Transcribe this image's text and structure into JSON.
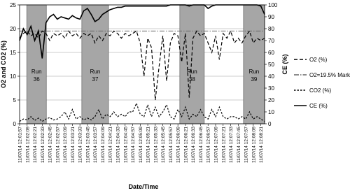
{
  "chart_data": {
    "type": "line",
    "x_label": "Date/Time",
    "y_label": "O2 and CO2 (%)",
    "y2_label": "CE (%)",
    "categories": [
      "11/07/14 12:01:57",
      null,
      "11/07/14 12:02:09",
      null,
      "11/07/14 12:02:21",
      null,
      "11/07/14 12:02:33",
      null,
      "11/07/14 12:02:45",
      null,
      "11/07/14 12:02:57",
      null,
      "11/07/14 12:03:09",
      null,
      "11/07/14 12:03:21",
      null,
      "11/07/14 12:03:33",
      null,
      "11/07/14 12:03:45",
      null,
      "11/07/14 12:03:57",
      null,
      "11/07/14 12:04:09",
      null,
      "11/07/14 12:04:21",
      null,
      "11/07/14 12:04:33",
      null,
      "11/07/14 12:04:45",
      null,
      "11/07/14 12:04:57",
      null,
      "11/07/14 12:05:09",
      null,
      "11/07/14 12:05:21",
      null,
      "11/07/14 12:05:33",
      null,
      "11/07/14 12:05:45",
      null,
      "11/07/14 12:05:57",
      null,
      "11/07/14 12:06:09",
      null,
      "11/07/14 12:06:21",
      null,
      "11/07/14 12:06:33",
      null,
      "11/07/14 12:06:45",
      null,
      "11/07/14 12:06:57",
      null,
      "11/07/14 12:07:09",
      null,
      "11/07/14 12:07:21",
      null,
      "11/07/14 12:07:33",
      null,
      "11/07/14 12:07:45",
      null,
      "11/07/14 12:07:57",
      null,
      "11/07/14 12:08:09",
      null,
      "11/07/14 12:08:21",
      null
    ],
    "series": [
      {
        "name": "O2 (%)",
        "color": "#000000",
        "dash": "5,3",
        "values": [
          18,
          19,
          19.5,
          18.5,
          19,
          18,
          19.5,
          19,
          17.5,
          19,
          18.5,
          19,
          18,
          19.5,
          18.5,
          19,
          18,
          19,
          18.5,
          19,
          17,
          18.5,
          17.5,
          19,
          18.5,
          19.5,
          19,
          18,
          19,
          18.5,
          19,
          19.5,
          17,
          10,
          18,
          16,
          5,
          12,
          18.5,
          9,
          17,
          19,
          18.5,
          13,
          19,
          5.5,
          18,
          19.5,
          18.5,
          19,
          17,
          15,
          18.5,
          13.5,
          19,
          18,
          19.5,
          17,
          18,
          17,
          18.5,
          19.5,
          17,
          18,
          17.5,
          18
        ]
      },
      {
        "name": "CO2 (%)",
        "color": "#000000",
        "dash": "2.5,2",
        "values": [
          0.5,
          1,
          0.8,
          1.5,
          0.7,
          1.2,
          0.5,
          1,
          1.3,
          0.8,
          1,
          1.5,
          2.5,
          1,
          3,
          1,
          1.5,
          0.8,
          1.2,
          0.8,
          1.5,
          3,
          1,
          2,
          1.5,
          2.5,
          1.5,
          2,
          1.5,
          2.5,
          2.5,
          4.3,
          2,
          1.5,
          4,
          1.5,
          3.5,
          1.5,
          2.5,
          4,
          1.5,
          1,
          3,
          1.5,
          3.5,
          1,
          2,
          1.5,
          3,
          1.5,
          1,
          3,
          1.5,
          3.5,
          1.5,
          1,
          1.5,
          1.5,
          1,
          1.5,
          1,
          2.5,
          1,
          1.5,
          1,
          0.5
        ]
      },
      {
        "name": "CE (%)",
        "color": "#000000",
        "dash": "none",
        "axis": "y2",
        "values": [
          70,
          80,
          75,
          82,
          70,
          78,
          55,
          85,
          90,
          92,
          88,
          90,
          89,
          88,
          91,
          89,
          88,
          95,
          97,
          92,
          86,
          88,
          92,
          94,
          96,
          97,
          98,
          98,
          99,
          99,
          99,
          99,
          99,
          99,
          99,
          99,
          99,
          99,
          99,
          99,
          100,
          100,
          100,
          100,
          100,
          99,
          100,
          100,
          100,
          100,
          97,
          99,
          100,
          100,
          100,
          100,
          100,
          100,
          100,
          100,
          100,
          100,
          100,
          100,
          99,
          92
        ]
      }
    ],
    "reference_line": {
      "name": "O2=19.5% Mark",
      "value": 19.5,
      "color": "#666666",
      "dash": "7,2,1.5,2"
    },
    "runs": [
      {
        "label": "Run",
        "number": "36",
        "start": 1.9,
        "end": 7.1
      },
      {
        "label": "Run",
        "number": "37",
        "start": 16.5,
        "end": 23.6
      },
      {
        "label": "Run",
        "number": "38",
        "start": 42.5,
        "end": 49
      },
      {
        "label": "Run",
        "number": "39",
        "start": 59.4,
        "end": 65
      }
    ],
    "ylim": [
      0,
      25
    ],
    "yticks": [
      0,
      5,
      10,
      15,
      20,
      25
    ],
    "y2lim": [
      0,
      100
    ],
    "y2ticks": [
      0,
      10,
      20,
      30,
      40,
      50,
      60,
      70,
      80,
      90,
      100
    ],
    "grid": true
  }
}
